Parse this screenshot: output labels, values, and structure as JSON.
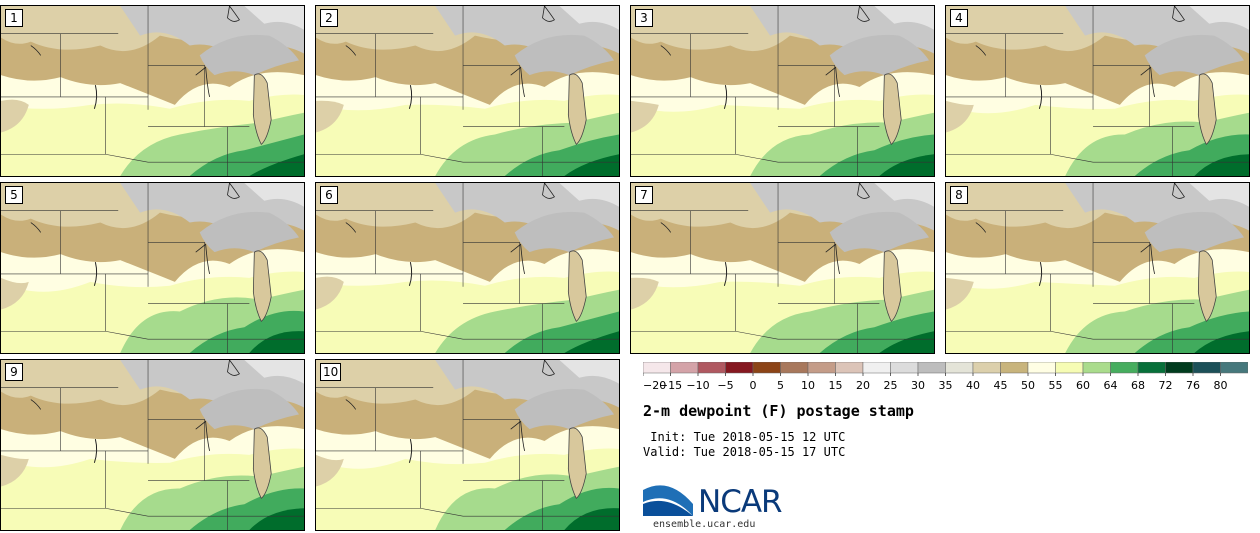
{
  "title": "2-m dewpoint (F) postage stamp",
  "init": " Init: Tue 2018-05-15 12 UTC",
  "valid": "Valid: Tue 2018-05-15 17 UTC",
  "site": "ensemble.ucar.edu",
  "logo_text": "NCAR",
  "members": [
    "1",
    "2",
    "3",
    "4",
    "5",
    "6",
    "7",
    "8",
    "9",
    "10"
  ],
  "legend": {
    "ticks": [
      "−20",
      "−15",
      "−10",
      "−5",
      "0",
      "5",
      "10",
      "15",
      "20",
      "25",
      "30",
      "35",
      "40",
      "45",
      "50",
      "55",
      "60",
      "64",
      "68",
      "72",
      "76",
      "80"
    ],
    "colors": [
      "#f5e7ea",
      "#d4a3a8",
      "#b05860",
      "#861820",
      "#8c4416",
      "#a8785c",
      "#c49c88",
      "#dcc4b8",
      "#f0f0f0",
      "#dcdcdc",
      "#bdbdbd",
      "#e4e4d8",
      "#dcd0ac",
      "#c8b47c",
      "#fffee4",
      "#f6fcb4",
      "#aadc8c",
      "#46ad5e",
      "#07703a",
      "#003c1e",
      "#1c5058",
      "#46787c"
    ]
  },
  "colors": {
    "tan": "#c9b07a",
    "light_tan": "#ddd0a8",
    "cream": "#fffee2",
    "pale_yellow": "#f7fcb7",
    "light_green": "#a6db8d",
    "mid_green": "#41ab5d",
    "dark_green": "#006d2c",
    "gray": "#c8c8c8",
    "light_gray": "#e4e4e4"
  }
}
